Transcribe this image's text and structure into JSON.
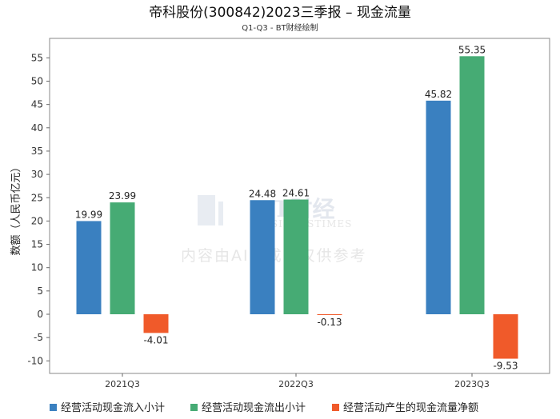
{
  "chart_data": {
    "type": "bar",
    "title": "帝科股份(300842)2023三季报 – 现金流量",
    "subtitle": "Q1-Q3 - BT财经绘制",
    "xlabel": "",
    "ylabel": "数额（人民币亿元）",
    "ylim": [
      -11,
      58
    ],
    "yticks": [
      -10,
      -5,
      0,
      5,
      10,
      15,
      20,
      25,
      30,
      35,
      40,
      45,
      50,
      55
    ],
    "categories": [
      "2021Q3",
      "2022Q3",
      "2023Q3"
    ],
    "series": [
      {
        "name": "经营活动现金流入小计",
        "color": "#3a80c0",
        "values": [
          19.99,
          24.48,
          45.82
        ],
        "labels": [
          "19.99",
          "24.48",
          "45.82"
        ]
      },
      {
        "name": "经营活动现金流出小计",
        "color": "#46ab74",
        "values": [
          23.99,
          24.61,
          55.35
        ],
        "labels": [
          "23.99",
          "24.61",
          "55.35"
        ]
      },
      {
        "name": "经营活动产生的现金流量净额",
        "color": "#f05a2a",
        "values": [
          -4.01,
          -0.13,
          -9.53
        ],
        "labels": [
          "-4.01",
          "-0.13",
          "-9.53"
        ]
      }
    ],
    "legend_position": "bottom",
    "grid": false
  },
  "watermark": {
    "brand": "BT财经",
    "brand_en": "BUSINESSTIMES",
    "notice": "内容由AI生成，仅供参考"
  }
}
